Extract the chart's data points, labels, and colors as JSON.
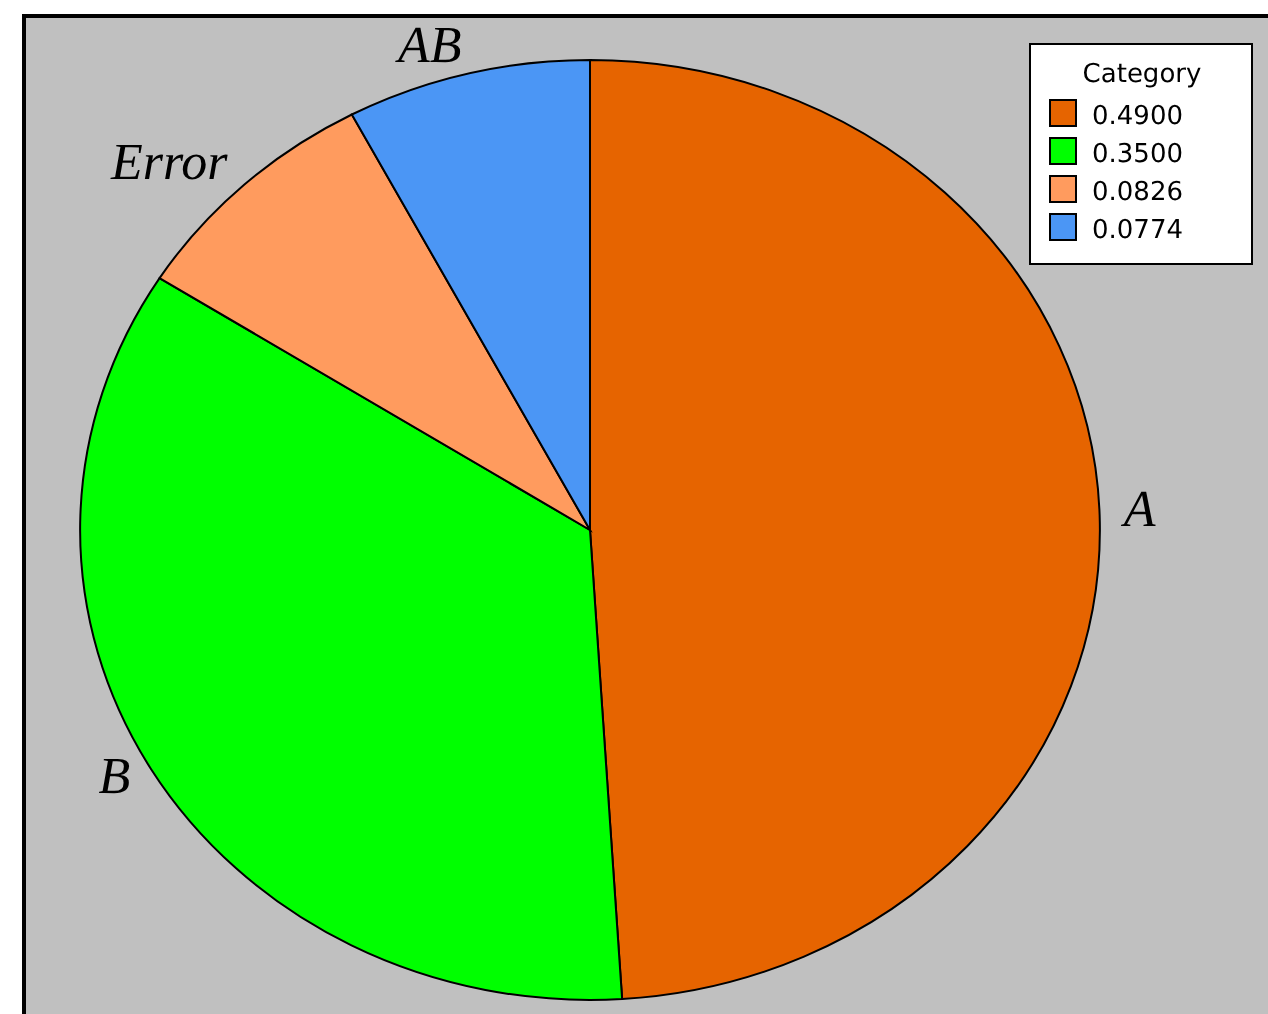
{
  "chart_data": {
    "type": "pie",
    "legend_title": "Category",
    "legend": "top right",
    "categories": [
      "0.4900",
      "0.3500",
      "0.0826",
      "0.0774"
    ],
    "values": [
      0.49,
      0.35,
      0.0826,
      0.0774
    ],
    "annotations": [
      "A",
      "B",
      "Error",
      "AB"
    ],
    "colors": [
      "#e66400",
      "#00ff00",
      "#ff9b5e",
      "#4b96f5"
    ]
  }
}
